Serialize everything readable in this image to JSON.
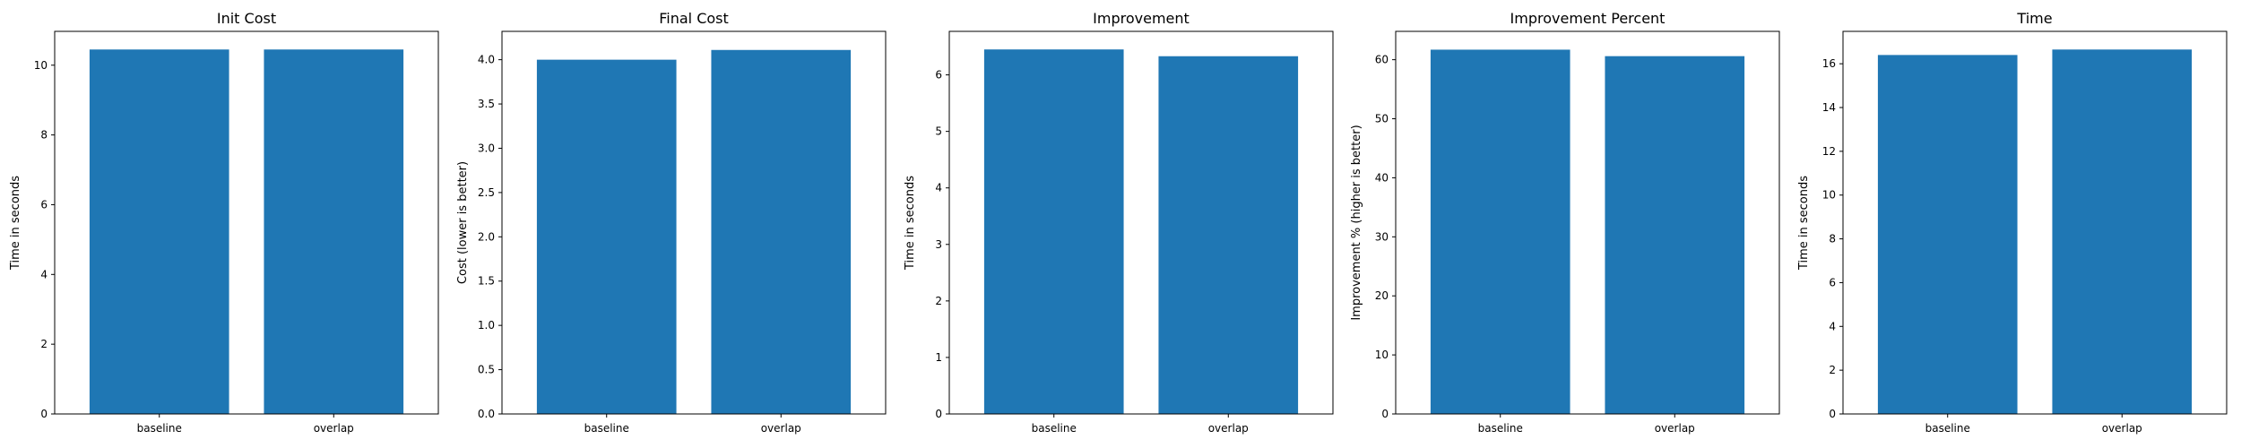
{
  "bar_color": "#1f77b4",
  "chart_data": [
    {
      "type": "bar",
      "title": "Init Cost",
      "xlabel": "",
      "ylabel": "Time in seconds",
      "categories": [
        "baseline",
        "overlap"
      ],
      "values": [
        10.45,
        10.45
      ],
      "ylim": [
        0,
        10.97
      ],
      "yticks": [
        0,
        2,
        4,
        6,
        8,
        10
      ],
      "ytick_labels": [
        "0",
        "2",
        "4",
        "6",
        "8",
        "10"
      ],
      "grid": false,
      "legend": "none"
    },
    {
      "type": "bar",
      "title": "Final Cost",
      "xlabel": "",
      "ylabel": "Cost (lower is better)",
      "categories": [
        "baseline",
        "overlap"
      ],
      "values": [
        4.0,
        4.11
      ],
      "ylim": [
        0,
        4.32
      ],
      "yticks": [
        0,
        0.5,
        1.0,
        1.5,
        2.0,
        2.5,
        3.0,
        3.5,
        4.0
      ],
      "ytick_labels": [
        "0.0",
        "0.5",
        "1.0",
        "1.5",
        "2.0",
        "2.5",
        "3.0",
        "3.5",
        "4.0"
      ],
      "grid": false,
      "legend": "none"
    },
    {
      "type": "bar",
      "title": "Improvement",
      "xlabel": "",
      "ylabel": "Time in seconds",
      "categories": [
        "baseline",
        "overlap"
      ],
      "values": [
        6.45,
        6.33
      ],
      "ylim": [
        0,
        6.77
      ],
      "yticks": [
        0,
        1,
        2,
        3,
        4,
        5,
        6
      ],
      "ytick_labels": [
        "0",
        "1",
        "2",
        "3",
        "4",
        "5",
        "6"
      ],
      "grid": false,
      "legend": "none"
    },
    {
      "type": "bar",
      "title": "Improvement Percent",
      "xlabel": "",
      "ylabel": "Improvement % (higher is better)",
      "categories": [
        "baseline",
        "overlap"
      ],
      "values": [
        61.7,
        60.6
      ],
      "ylim": [
        0,
        64.8
      ],
      "yticks": [
        0,
        10,
        20,
        30,
        40,
        50,
        60
      ],
      "ytick_labels": [
        "0",
        "10",
        "20",
        "30",
        "40",
        "50",
        "60"
      ],
      "grid": false,
      "legend": "none"
    },
    {
      "type": "bar",
      "title": "Time",
      "xlabel": "",
      "ylabel": "Time in seconds",
      "categories": [
        "baseline",
        "overlap"
      ],
      "values": [
        16.4,
        16.65
      ],
      "ylim": [
        0,
        17.48
      ],
      "yticks": [
        0,
        2,
        4,
        6,
        8,
        10,
        12,
        14,
        16
      ],
      "ytick_labels": [
        "0",
        "2",
        "4",
        "6",
        "8",
        "10",
        "12",
        "14",
        "16"
      ],
      "grid": false,
      "legend": "none"
    }
  ]
}
